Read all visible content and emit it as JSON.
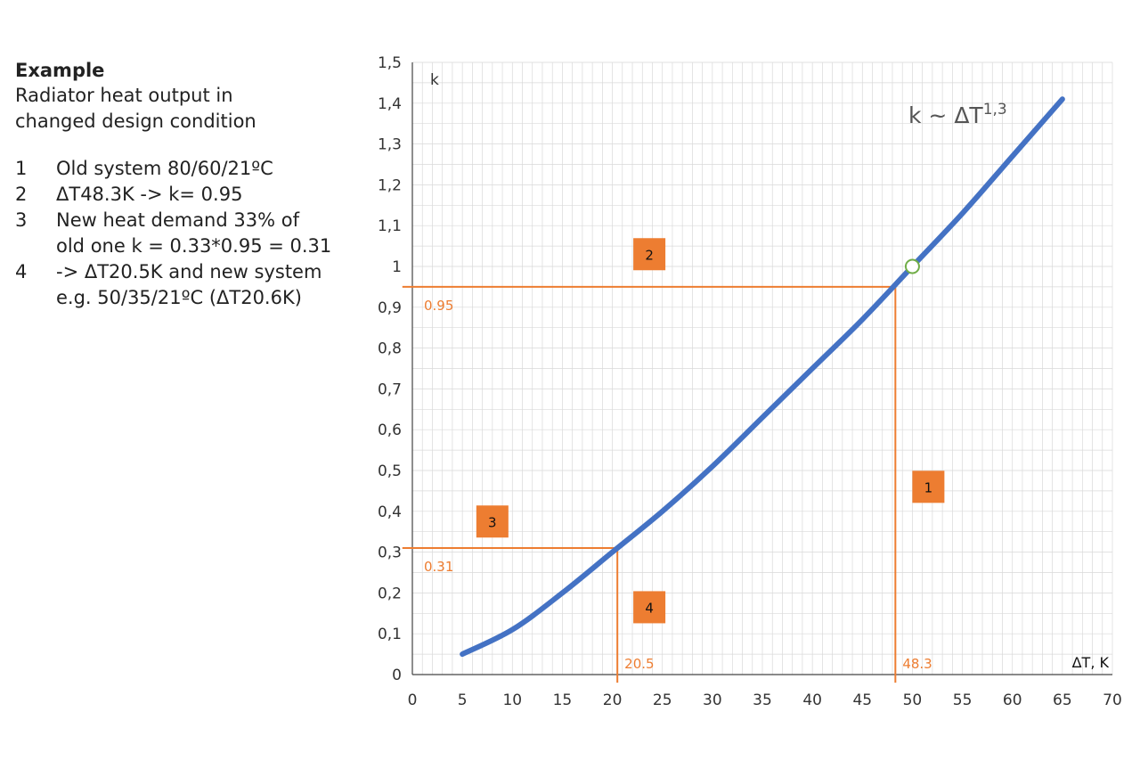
{
  "panel": {
    "heading": "Example",
    "description": [
      "Radiator heat output in",
      "changed design condition"
    ],
    "steps": [
      {
        "num": "1",
        "lines": [
          "Old system 80/60/21ºC"
        ]
      },
      {
        "num": "2",
        "lines": [
          "ΔT48.3K -> k= 0.95"
        ]
      },
      {
        "num": "3",
        "lines": [
          "New heat demand 33% of",
          "old one  k = 0.33*0.95 = 0.31"
        ]
      },
      {
        "num": "4",
        "lines": [
          "-> ΔT20.5K and new system",
          "e.g. 50/35/21ºC (ΔT20.6K)"
        ]
      }
    ]
  },
  "chart_data": {
    "type": "line",
    "title": "",
    "formula": "k ~ ΔT",
    "formula_exp": "1,3",
    "xlabel": "ΔT, K",
    "ylabel": "k",
    "xlim": [
      0,
      70
    ],
    "ylim": [
      0,
      1.5
    ],
    "x_ticks": [
      0,
      5,
      10,
      15,
      20,
      25,
      30,
      35,
      40,
      45,
      50,
      55,
      60,
      65,
      70
    ],
    "x_tick_labels": [
      "0",
      "5",
      "10",
      "15",
      "20",
      "25",
      "30",
      "35",
      "40",
      "45",
      "50",
      "55",
      "60",
      "65",
      "70"
    ],
    "y_ticks": [
      0,
      0.1,
      0.2,
      0.3,
      0.4,
      0.5,
      0.6,
      0.7,
      0.8,
      0.9,
      1.0,
      1.1,
      1.2,
      1.3,
      1.4,
      1.5
    ],
    "y_tick_labels": [
      "0",
      "0,1",
      "0,2",
      "0,3",
      "0,4",
      "0,5",
      "0,6",
      "0,7",
      "0,8",
      "0,9",
      "1",
      "1,1",
      "1,2",
      "1,3",
      "1,4",
      "1,5"
    ],
    "grid": true,
    "minor_grid_step_x": 1,
    "minor_grid_step_y": 0.05,
    "series": [
      {
        "color": "#4472C4",
        "x": [
          5,
          10,
          15,
          20,
          25,
          30,
          35,
          40,
          45,
          50,
          55,
          60,
          65
        ],
        "y": [
          0.05,
          0.11,
          0.2,
          0.3,
          0.4,
          0.51,
          0.63,
          0.75,
          0.87,
          1.0,
          1.13,
          1.27,
          1.41
        ]
      }
    ],
    "reference_point": {
      "x": 50,
      "y": 1.0
    },
    "annotations": [
      {
        "type": "hline",
        "y": 0.95,
        "x_from": -1,
        "x_to": 48.3,
        "label": "0.95"
      },
      {
        "type": "vline",
        "x": 48.3,
        "y_from": 0.95,
        "y_to": -0.02,
        "label": "48.3"
      },
      {
        "type": "hline",
        "y": 0.31,
        "x_from": -1,
        "x_to": 20.5,
        "label": "0.31"
      },
      {
        "type": "vline",
        "x": 20.5,
        "y_from": 0.31,
        "y_to": -0.02,
        "label": "20.5"
      }
    ],
    "step_markers": [
      {
        "label": "1",
        "x": 51.6,
        "y": 0.46
      },
      {
        "label": "2",
        "x": 23.7,
        "y": 1.03
      },
      {
        "label": "3",
        "x": 8.0,
        "y": 0.375
      },
      {
        "label": "4",
        "x": 23.7,
        "y": 0.165
      }
    ],
    "colors": {
      "curve": "#4472C4",
      "annotation": "#ED7D31",
      "grid": "#d9d9d9",
      "axis": "#444444"
    }
  }
}
